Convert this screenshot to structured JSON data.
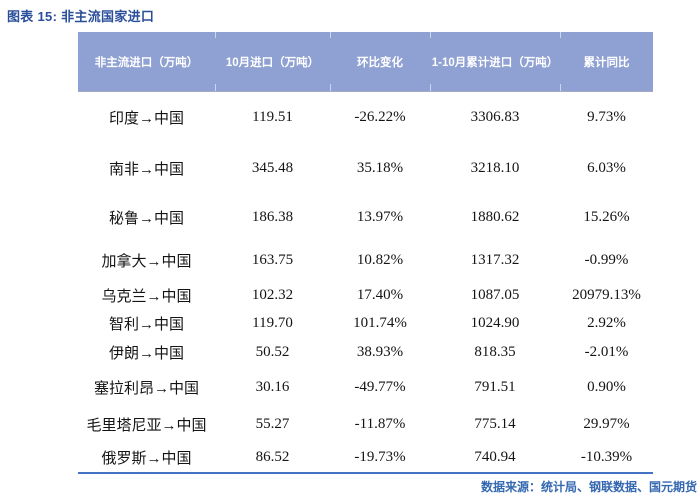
{
  "title": "图表 15: 非主流国家进口",
  "table": {
    "headers": [
      "非主流进口（万吨）",
      "10月进口（万吨）",
      "环比变化",
      "1-10月累计进口（万吨）",
      "累计同比"
    ],
    "rows": [
      [
        "印度→中国",
        "119.51",
        "-26.22%",
        "3306.83",
        "9.73%"
      ],
      [
        "南非→中国",
        "345.48",
        "35.18%",
        "3218.10",
        "6.03%"
      ],
      [
        "秘鲁→中国",
        "186.38",
        "13.97%",
        "1880.62",
        "15.26%"
      ],
      [
        "加拿大→中国",
        "163.75",
        "10.82%",
        "1317.32",
        "-0.99%"
      ],
      [
        "乌克兰→中国",
        "102.32",
        "17.40%",
        "1087.05",
        "20979.13%"
      ],
      [
        "智利→中国",
        "119.70",
        "101.74%",
        "1024.90",
        "2.92%"
      ],
      [
        "伊朗→中国",
        "50.52",
        "38.93%",
        "818.35",
        "-2.01%"
      ],
      [
        "塞拉利昂→中国",
        "30.16",
        "-49.77%",
        "791.51",
        "0.90%"
      ],
      [
        "毛里塔尼亚→中国",
        "55.27",
        "-11.87%",
        "775.14",
        "29.97%"
      ],
      [
        "俄罗斯→中国",
        "86.52",
        "-19.73%",
        "740.94",
        "-10.39%"
      ]
    ]
  },
  "footer": {
    "source": "数据来源：统计局、钢联数据、国元期货"
  },
  "colors": {
    "header_bg": "#8FA0D2",
    "title_color": "#2A4E9A",
    "source_color": "#3468B0",
    "rule_color": "#4472C4"
  }
}
